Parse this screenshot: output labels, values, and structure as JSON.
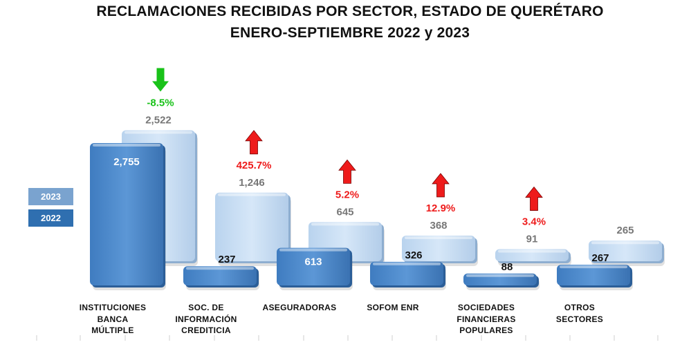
{
  "title": {
    "line1": "RECLAMACIONES RECIBIDAS POR SECTOR, ESTADO DE QUERÉTARO",
    "line2": "ENERO-SEPTIEMBRE 2022 y 2023"
  },
  "legend": {
    "y2023": "2023",
    "y2022": "2022"
  },
  "colors": {
    "y2022": "#4a86c8",
    "y2023": "#c6dcf1",
    "up": "#ee1b1b",
    "down": "#19c219",
    "label2023": "#777777"
  },
  "chart_data": {
    "type": "bar",
    "title": "RECLAMACIONES RECIBIDAS POR SECTOR, ESTADO DE QUERÉTARO ENERO-SEPTIEMBRE 2022 y 2023",
    "categories": [
      [
        "INSTITUCIONES",
        "BANCA",
        "MÚLTIPLE"
      ],
      [
        "SOC. DE",
        "INFORMACIÓN",
        "CREDITICIA"
      ],
      [
        "ASEGURADORAS"
      ],
      [
        "SOFOM ENR"
      ],
      [
        "SOCIEDADES",
        "FINANCIERAS",
        "POPULARES"
      ],
      [
        "OTROS",
        "SECTORES"
      ]
    ],
    "series": [
      {
        "name": "2022",
        "values": [
          2755,
          237,
          613,
          326,
          88,
          267
        ],
        "labels": [
          "2,755",
          "237",
          "613",
          "326",
          "88",
          "267"
        ]
      },
      {
        "name": "2023",
        "values": [
          2522,
          1246,
          645,
          368,
          91,
          265
        ],
        "labels": [
          "2,522",
          "1,246",
          "645",
          "368",
          "91",
          "265"
        ]
      }
    ],
    "changes": [
      {
        "label": "-8.5%",
        "direction": "down"
      },
      {
        "label": "425.7%",
        "direction": "up"
      },
      {
        "label": "5.2%",
        "direction": "up"
      },
      {
        "label": "12.9%",
        "direction": "up"
      },
      {
        "label": "3.4%",
        "direction": "up"
      },
      {
        "label": "",
        "direction": "none"
      }
    ],
    "legend": [
      "2023",
      "2022"
    ],
    "xlabel": "",
    "ylabel": ""
  }
}
